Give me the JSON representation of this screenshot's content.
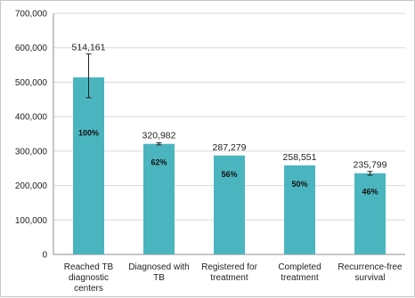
{
  "chart_data": {
    "type": "bar",
    "title": "",
    "xlabel": "",
    "ylabel": "",
    "ylim": [
      0,
      700000
    ],
    "yticks": [
      "0",
      "100,000",
      "200,000",
      "300,000",
      "400,000",
      "500,000",
      "600,000",
      "700,000"
    ],
    "grid": true,
    "legend": "none",
    "bar_color": "#4bb5bf",
    "categories": [
      [
        "Reached TB",
        "diagnostic",
        "centers"
      ],
      [
        "Diagnosed with",
        "TB"
      ],
      [
        "Registered for",
        "treatment"
      ],
      [
        "Completed",
        "treatment"
      ],
      [
        "Recurrence-free",
        "survival"
      ]
    ],
    "values": [
      514161,
      320982,
      287279,
      258551,
      235799
    ],
    "value_labels": [
      "514,161",
      "320,982",
      "287,279",
      "258,551",
      "235,799"
    ],
    "percent_labels": [
      "100%",
      "62%",
      "56%",
      "50%",
      "46%"
    ],
    "error_bars": [
      {
        "low": 455000,
        "high": 582000
      },
      {
        "low": 318000,
        "high": 324000
      },
      null,
      null,
      {
        "low": 230000,
        "high": 241000
      }
    ]
  }
}
